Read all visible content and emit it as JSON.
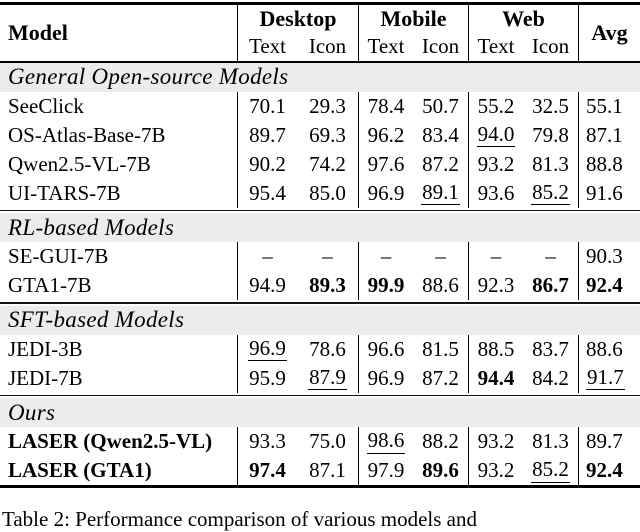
{
  "table": {
    "header": {
      "model_label": "Model",
      "avg_label": "Avg",
      "groups": [
        {
          "label": "Desktop"
        },
        {
          "label": "Mobile"
        },
        {
          "label": "Web"
        }
      ],
      "sub_labels": [
        "Text",
        "Icon"
      ]
    },
    "sections": [
      {
        "title": "General Open-source Models",
        "rows": [
          {
            "model": "SeeClick",
            "bold": false,
            "cells": [
              {
                "v": "70.1",
                "s": ""
              },
              {
                "v": "29.3",
                "s": ""
              },
              {
                "v": "78.4",
                "s": ""
              },
              {
                "v": "50.7",
                "s": ""
              },
              {
                "v": "55.2",
                "s": ""
              },
              {
                "v": "32.5",
                "s": ""
              },
              {
                "v": "55.1",
                "s": ""
              }
            ]
          },
          {
            "model": "OS-Atlas-Base-7B",
            "bold": false,
            "cells": [
              {
                "v": "89.7",
                "s": ""
              },
              {
                "v": "69.3",
                "s": ""
              },
              {
                "v": "96.2",
                "s": ""
              },
              {
                "v": "83.4",
                "s": ""
              },
              {
                "v": "94.0",
                "s": "u"
              },
              {
                "v": "79.8",
                "s": ""
              },
              {
                "v": "87.1",
                "s": ""
              }
            ]
          },
          {
            "model": "Qwen2.5-VL-7B",
            "bold": false,
            "cells": [
              {
                "v": "90.2",
                "s": ""
              },
              {
                "v": "74.2",
                "s": ""
              },
              {
                "v": "97.6",
                "s": ""
              },
              {
                "v": "87.2",
                "s": ""
              },
              {
                "v": "93.2",
                "s": ""
              },
              {
                "v": "81.3",
                "s": ""
              },
              {
                "v": "88.8",
                "s": ""
              }
            ]
          },
          {
            "model": "UI-TARS-7B",
            "bold": false,
            "cells": [
              {
                "v": "95.4",
                "s": ""
              },
              {
                "v": "85.0",
                "s": ""
              },
              {
                "v": "96.9",
                "s": ""
              },
              {
                "v": "89.1",
                "s": "u"
              },
              {
                "v": "93.6",
                "s": ""
              },
              {
                "v": "85.2",
                "s": "u"
              },
              {
                "v": "91.6",
                "s": ""
              }
            ]
          }
        ]
      },
      {
        "title": "RL-based Models",
        "rows": [
          {
            "model": "SE-GUI-7B",
            "bold": false,
            "cells": [
              {
                "v": "–",
                "s": ""
              },
              {
                "v": "–",
                "s": ""
              },
              {
                "v": "–",
                "s": ""
              },
              {
                "v": "–",
                "s": ""
              },
              {
                "v": "–",
                "s": ""
              },
              {
                "v": "–",
                "s": ""
              },
              {
                "v": "90.3",
                "s": ""
              }
            ]
          },
          {
            "model": "GTA1-7B",
            "bold": false,
            "cells": [
              {
                "v": "94.9",
                "s": ""
              },
              {
                "v": "89.3",
                "s": "b"
              },
              {
                "v": "99.9",
                "s": "b"
              },
              {
                "v": "88.6",
                "s": ""
              },
              {
                "v": "92.3",
                "s": ""
              },
              {
                "v": "86.7",
                "s": "b"
              },
              {
                "v": "92.4",
                "s": "b"
              }
            ]
          }
        ]
      },
      {
        "title": "SFT-based Models",
        "rows": [
          {
            "model": "JEDI-3B",
            "bold": false,
            "cells": [
              {
                "v": "96.9",
                "s": "u"
              },
              {
                "v": "78.6",
                "s": ""
              },
              {
                "v": "96.6",
                "s": ""
              },
              {
                "v": "81.5",
                "s": ""
              },
              {
                "v": "88.5",
                "s": ""
              },
              {
                "v": "83.7",
                "s": ""
              },
              {
                "v": "88.6",
                "s": ""
              }
            ]
          },
          {
            "model": "JEDI-7B",
            "bold": false,
            "cells": [
              {
                "v": "95.9",
                "s": ""
              },
              {
                "v": "87.9",
                "s": "u"
              },
              {
                "v": "96.9",
                "s": ""
              },
              {
                "v": "87.2",
                "s": ""
              },
              {
                "v": "94.4",
                "s": "b"
              },
              {
                "v": "84.2",
                "s": ""
              },
              {
                "v": "91.7",
                "s": "u"
              }
            ]
          }
        ]
      },
      {
        "title": "Ours",
        "rows": [
          {
            "model": "LASER (Qwen2.5-VL)",
            "bold": true,
            "cells": [
              {
                "v": "93.3",
                "s": ""
              },
              {
                "v": "75.0",
                "s": ""
              },
              {
                "v": "98.6",
                "s": "u"
              },
              {
                "v": "88.2",
                "s": ""
              },
              {
                "v": "93.2",
                "s": ""
              },
              {
                "v": "81.3",
                "s": ""
              },
              {
                "v": "89.7",
                "s": ""
              }
            ]
          },
          {
            "model": "LASER (GTA1)",
            "bold": true,
            "cells": [
              {
                "v": "97.4",
                "s": "b"
              },
              {
                "v": "87.1",
                "s": ""
              },
              {
                "v": "97.9",
                "s": ""
              },
              {
                "v": "89.6",
                "s": "b"
              },
              {
                "v": "93.2",
                "s": ""
              },
              {
                "v": "85.2",
                "s": "u"
              },
              {
                "v": "92.4",
                "s": "b"
              }
            ]
          }
        ]
      }
    ]
  },
  "caption": "Table 2: Performance comparison of various models and"
}
